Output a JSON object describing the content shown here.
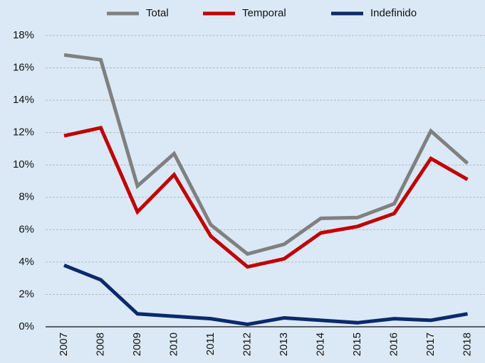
{
  "chart_data": {
    "type": "line",
    "categories": [
      "2007",
      "2008",
      "2009",
      "2010",
      "2011",
      "2012",
      "2013",
      "2014",
      "2015",
      "2016",
      "2017",
      "2018"
    ],
    "series": [
      {
        "name": "Total",
        "color": "#808080",
        "values": [
          16.8,
          16.5,
          8.7,
          10.7,
          6.3,
          4.5,
          5.1,
          6.7,
          6.75,
          7.6,
          12.1,
          10.1
        ]
      },
      {
        "name": "Temporal",
        "color": "#c00000",
        "values": [
          11.8,
          12.3,
          7.1,
          9.4,
          5.6,
          3.7,
          4.2,
          5.8,
          6.2,
          7.0,
          10.4,
          9.1
        ]
      },
      {
        "name": "Indefinido",
        "color": "#0b2a6b",
        "values": [
          3.8,
          2.9,
          0.8,
          0.65,
          0.5,
          0.15,
          0.55,
          0.4,
          0.25,
          0.5,
          0.4,
          0.8
        ]
      }
    ],
    "ylim": [
      0,
      18
    ],
    "yticks": [
      {
        "value": 0,
        "label": "0%"
      },
      {
        "value": 2,
        "label": "2%"
      },
      {
        "value": 4,
        "label": "4%"
      },
      {
        "value": 6,
        "label": "6%"
      },
      {
        "value": 8,
        "label": "8%"
      },
      {
        "value": 10,
        "label": "10%"
      },
      {
        "value": 12,
        "label": "12%"
      },
      {
        "value": 14,
        "label": "14%"
      },
      {
        "value": 16,
        "label": "16%"
      },
      {
        "value": 18,
        "label": "18%"
      }
    ],
    "grid": true,
    "legend": "top",
    "background": "#dbe9f6"
  }
}
